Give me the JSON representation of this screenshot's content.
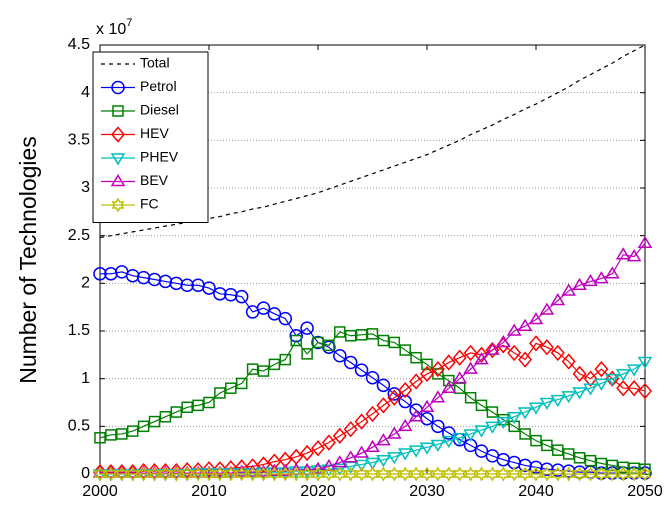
{
  "chart_data": {
    "type": "line",
    "ylabel": "Number of Technologies",
    "y_multiplier": {
      "text": "x 10",
      "exponent": "7"
    },
    "x": [
      2000,
      2001,
      2002,
      2003,
      2004,
      2005,
      2006,
      2007,
      2008,
      2009,
      2010,
      2011,
      2012,
      2013,
      2014,
      2015,
      2016,
      2017,
      2018,
      2019,
      2020,
      2021,
      2022,
      2023,
      2024,
      2025,
      2026,
      2027,
      2028,
      2029,
      2030,
      2031,
      2032,
      2033,
      2034,
      2035,
      2036,
      2037,
      2038,
      2039,
      2040,
      2041,
      2042,
      2043,
      2044,
      2045,
      2046,
      2047,
      2048,
      2049,
      2050
    ],
    "xlim": [
      2000,
      2050
    ],
    "xticks": [
      2000,
      2010,
      2020,
      2030,
      2040,
      2050
    ],
    "ylim": [
      0,
      4.5
    ],
    "yticks": [
      0,
      0.5,
      1,
      1.5,
      2,
      2.5,
      3,
      3.5,
      4,
      4.5
    ],
    "grid": true,
    "legend_position": "top-left",
    "series": [
      {
        "name": "Total",
        "color": "#000000",
        "line_style": "dashed",
        "marker": "none",
        "values": [
          2.48,
          2.5,
          2.52,
          2.54,
          2.56,
          2.58,
          2.6,
          2.62,
          2.64,
          2.66,
          2.68,
          2.7,
          2.73,
          2.75,
          2.78,
          2.8,
          2.83,
          2.86,
          2.89,
          2.92,
          2.95,
          2.99,
          3.03,
          3.07,
          3.11,
          3.15,
          3.19,
          3.23,
          3.27,
          3.31,
          3.35,
          3.4,
          3.45,
          3.5,
          3.56,
          3.61,
          3.66,
          3.72,
          3.77,
          3.83,
          3.88,
          3.94,
          4.0,
          4.06,
          4.13,
          4.19,
          4.25,
          4.31,
          4.38,
          4.44,
          4.5
        ]
      },
      {
        "name": "Petrol",
        "color": "#0000ff",
        "line_style": "solid",
        "marker": "circle",
        "values": [
          2.1,
          2.1,
          2.12,
          2.08,
          2.06,
          2.04,
          2.02,
          2.0,
          1.98,
          1.98,
          1.95,
          1.89,
          1.88,
          1.86,
          1.7,
          1.74,
          1.68,
          1.63,
          1.45,
          1.53,
          1.38,
          1.33,
          1.24,
          1.17,
          1.09,
          1.01,
          0.93,
          0.84,
          0.76,
          0.67,
          0.58,
          0.5,
          0.43,
          0.36,
          0.3,
          0.24,
          0.19,
          0.15,
          0.12,
          0.09,
          0.07,
          0.05,
          0.04,
          0.03,
          0.02,
          0.02,
          0.01,
          0.01,
          0.01,
          0.01,
          0.01
        ]
      },
      {
        "name": "Diesel",
        "color": "#008000",
        "line_style": "solid",
        "marker": "square",
        "values": [
          0.38,
          0.41,
          0.42,
          0.45,
          0.5,
          0.55,
          0.6,
          0.65,
          0.7,
          0.72,
          0.75,
          0.85,
          0.9,
          0.95,
          1.1,
          1.08,
          1.15,
          1.2,
          1.4,
          1.26,
          1.38,
          1.35,
          1.49,
          1.45,
          1.46,
          1.47,
          1.4,
          1.38,
          1.3,
          1.22,
          1.15,
          1.05,
          0.98,
          0.9,
          0.8,
          0.72,
          0.65,
          0.57,
          0.5,
          0.42,
          0.35,
          0.3,
          0.25,
          0.21,
          0.17,
          0.14,
          0.11,
          0.09,
          0.07,
          0.06,
          0.05
        ]
      },
      {
        "name": "HEV",
        "color": "#ff0000",
        "line_style": "solid",
        "marker": "diamond",
        "values": [
          0.02,
          0.02,
          0.02,
          0.02,
          0.03,
          0.03,
          0.03,
          0.03,
          0.04,
          0.04,
          0.05,
          0.05,
          0.06,
          0.07,
          0.08,
          0.1,
          0.13,
          0.15,
          0.18,
          0.22,
          0.27,
          0.33,
          0.4,
          0.47,
          0.55,
          0.63,
          0.72,
          0.8,
          0.88,
          0.97,
          1.05,
          1.1,
          1.17,
          1.22,
          1.27,
          1.25,
          1.3,
          1.35,
          1.27,
          1.2,
          1.37,
          1.33,
          1.27,
          1.18,
          1.05,
          1.0,
          1.1,
          1.0,
          0.9,
          0.9,
          0.87
        ]
      },
      {
        "name": "PHEV",
        "color": "#00bfbf",
        "line_style": "solid",
        "marker": "triangle-down",
        "values": [
          0,
          0,
          0,
          0,
          0,
          0,
          0,
          0,
          0,
          0.01,
          0.01,
          0.01,
          0.01,
          0.01,
          0.01,
          0.02,
          0.02,
          0.02,
          0.03,
          0.03,
          0.04,
          0.05,
          0.06,
          0.08,
          0.1,
          0.12,
          0.15,
          0.18,
          0.22,
          0.25,
          0.28,
          0.31,
          0.35,
          0.38,
          0.42,
          0.46,
          0.5,
          0.55,
          0.6,
          0.65,
          0.7,
          0.75,
          0.78,
          0.82,
          0.86,
          0.9,
          0.95,
          1.0,
          1.05,
          1.1,
          1.18
        ]
      },
      {
        "name": "BEV",
        "color": "#bf00bf",
        "line_style": "solid",
        "marker": "triangle-up",
        "values": [
          0.01,
          0.01,
          0.01,
          0.01,
          0.01,
          0.01,
          0.01,
          0.01,
          0.01,
          0.01,
          0.01,
          0.01,
          0.01,
          0.02,
          0.02,
          0.02,
          0.03,
          0.03,
          0.04,
          0.04,
          0.05,
          0.08,
          0.12,
          0.17,
          0.22,
          0.28,
          0.35,
          0.42,
          0.5,
          0.6,
          0.7,
          0.8,
          0.9,
          1.0,
          1.1,
          1.2,
          1.3,
          1.38,
          1.5,
          1.55,
          1.62,
          1.72,
          1.82,
          1.92,
          1.98,
          2.02,
          2.05,
          2.1,
          2.3,
          2.28,
          2.42
        ]
      },
      {
        "name": "FC",
        "color": "#bfbf00",
        "line_style": "solid",
        "marker": "hexagram",
        "values": [
          0,
          0,
          0,
          0,
          0,
          0,
          0,
          0,
          0,
          0,
          0,
          0,
          0,
          0,
          0,
          0,
          0,
          0,
          0,
          0,
          0,
          0,
          0,
          0,
          0,
          0,
          0,
          0,
          0,
          0,
          0,
          0,
          0,
          0,
          0,
          0,
          0,
          0,
          0,
          0,
          0,
          0,
          0,
          0,
          0,
          0,
          0,
          0,
          0,
          0,
          0
        ]
      }
    ]
  }
}
